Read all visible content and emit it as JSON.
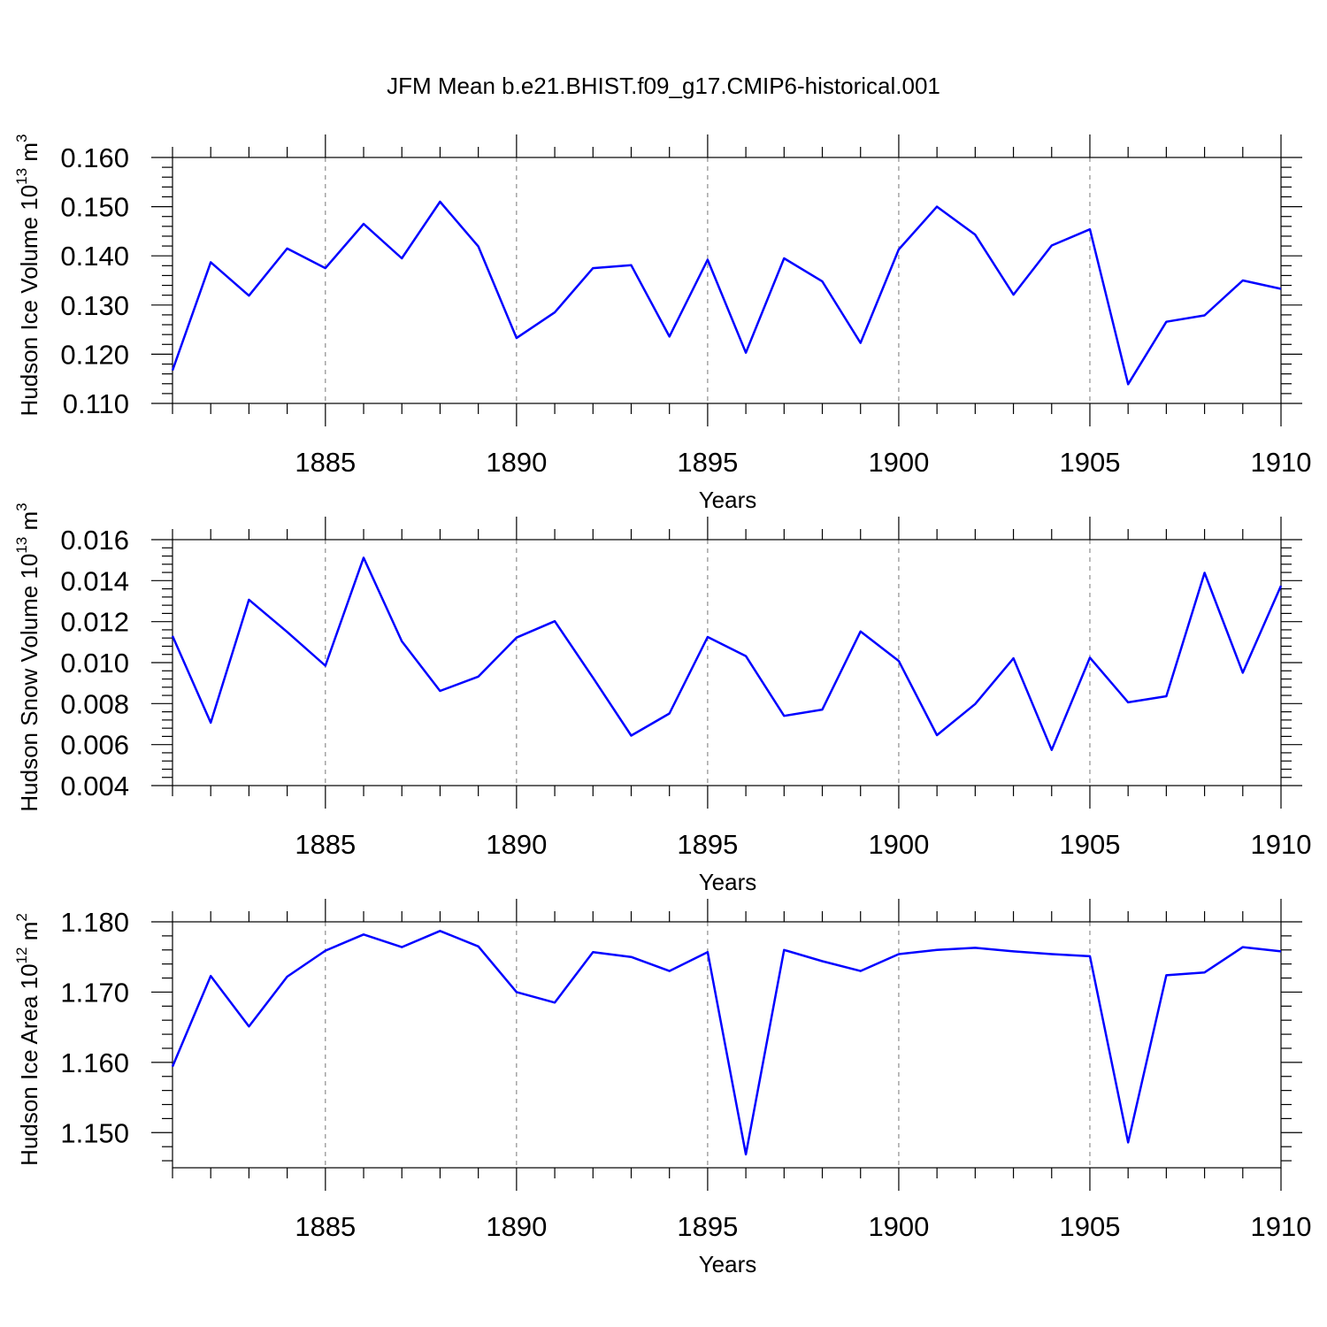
{
  "figure": {
    "title": "JFM Mean b.e21.BHIST.f09_g17.CMIP6-historical.001",
    "line_color": "#0000ff"
  },
  "chart_data": [
    {
      "type": "line",
      "title": "",
      "xlabel": "Years",
      "ylabel": {
        "prefix": "Hudson Ice Volume 10",
        "exp": "13",
        "unit": " m",
        "unit_exp": "3"
      },
      "xlim": [
        1881,
        1910
      ],
      "ylim": [
        0.11,
        0.16
      ],
      "x_ticks": [
        1885,
        1890,
        1895,
        1900,
        1905,
        1910
      ],
      "x_tick_labels": [
        "1885",
        "1890",
        "1895",
        "1900",
        "1905",
        "1910"
      ],
      "y_ticks": [
        0.11,
        0.12,
        0.13,
        0.14,
        0.15,
        0.16
      ],
      "y_tick_labels": [
        "0.110",
        "0.120",
        "0.130",
        "0.140",
        "0.150",
        "0.160"
      ],
      "grid": "vertical-dashed",
      "x": [
        1881,
        1882,
        1883,
        1884,
        1885,
        1886,
        1887,
        1888,
        1889,
        1890,
        1891,
        1892,
        1893,
        1894,
        1895,
        1896,
        1897,
        1898,
        1899,
        1900,
        1901,
        1902,
        1903,
        1904,
        1905,
        1906,
        1907,
        1908,
        1909,
        1910
      ],
      "values": [
        0.1167,
        0.1387,
        0.1319,
        0.1415,
        0.1375,
        0.1465,
        0.1395,
        0.151,
        0.1419,
        0.1233,
        0.1285,
        0.1375,
        0.1381,
        0.1236,
        0.1392,
        0.1203,
        0.1395,
        0.1348,
        0.1223,
        0.1413,
        0.15,
        0.1443,
        0.1321,
        0.1421,
        0.1454,
        0.1139,
        0.1266,
        0.1279,
        0.135,
        0.1333
      ]
    },
    {
      "type": "line",
      "title": "",
      "xlabel": "Years",
      "ylabel": {
        "prefix": "Hudson Snow Volume 10",
        "exp": "13",
        "unit": " m",
        "unit_exp": "3"
      },
      "xlim": [
        1881,
        1910
      ],
      "ylim": [
        0.004,
        0.016
      ],
      "x_ticks": [
        1885,
        1890,
        1895,
        1900,
        1905,
        1910
      ],
      "x_tick_labels": [
        "1885",
        "1890",
        "1895",
        "1900",
        "1905",
        "1910"
      ],
      "y_ticks": [
        0.004,
        0.006,
        0.008,
        0.01,
        0.012,
        0.014,
        0.016
      ],
      "y_tick_labels": [
        "0.004",
        "0.006",
        "0.008",
        "0.010",
        "0.012",
        "0.014",
        "0.016"
      ],
      "grid": "vertical-dashed",
      "x": [
        1881,
        1882,
        1883,
        1884,
        1885,
        1886,
        1887,
        1888,
        1889,
        1890,
        1891,
        1892,
        1893,
        1894,
        1895,
        1896,
        1897,
        1898,
        1899,
        1900,
        1901,
        1902,
        1903,
        1904,
        1905,
        1906,
        1907,
        1908,
        1909,
        1910
      ],
      "values": [
        0.0113,
        0.00707,
        0.01307,
        0.0115,
        0.00985,
        0.01512,
        0.01104,
        0.00862,
        0.00932,
        0.01122,
        0.01202,
        0.00926,
        0.00644,
        0.00752,
        0.01125,
        0.01032,
        0.0074,
        0.00771,
        0.01152,
        0.01008,
        0.00646,
        0.00798,
        0.01021,
        0.00574,
        0.01024,
        0.00806,
        0.00836,
        0.01438,
        0.00951,
        0.01375
      ]
    },
    {
      "type": "line",
      "title": "",
      "xlabel": "Years",
      "ylabel": {
        "prefix": "Hudson Ice Area 10",
        "exp": "12",
        "unit": " m",
        "unit_exp": "2"
      },
      "xlim": [
        1881,
        1910
      ],
      "ylim": [
        1.145,
        1.18
      ],
      "x_ticks": [
        1885,
        1890,
        1895,
        1900,
        1905,
        1910
      ],
      "x_tick_labels": [
        "1885",
        "1890",
        "1895",
        "1900",
        "1905",
        "1910"
      ],
      "y_ticks": [
        1.15,
        1.16,
        1.17,
        1.18
      ],
      "y_tick_labels": [
        "1.150",
        "1.160",
        "1.170",
        "1.180"
      ],
      "grid": "vertical-dashed",
      "x": [
        1881,
        1882,
        1883,
        1884,
        1885,
        1886,
        1887,
        1888,
        1889,
        1890,
        1891,
        1892,
        1893,
        1894,
        1895,
        1896,
        1897,
        1898,
        1899,
        1900,
        1901,
        1902,
        1903,
        1904,
        1905,
        1906,
        1907,
        1908,
        1909,
        1910
      ],
      "values": [
        1.1594,
        1.1723,
        1.1651,
        1.1722,
        1.1759,
        1.1782,
        1.1764,
        1.1787,
        1.1765,
        1.17,
        1.1685,
        1.1757,
        1.175,
        1.173,
        1.1757,
        1.1469,
        1.176,
        1.1744,
        1.173,
        1.1754,
        1.176,
        1.1763,
        1.1758,
        1.1754,
        1.1751,
        1.1486,
        1.1724,
        1.1728,
        1.1764,
        1.1758
      ]
    }
  ]
}
